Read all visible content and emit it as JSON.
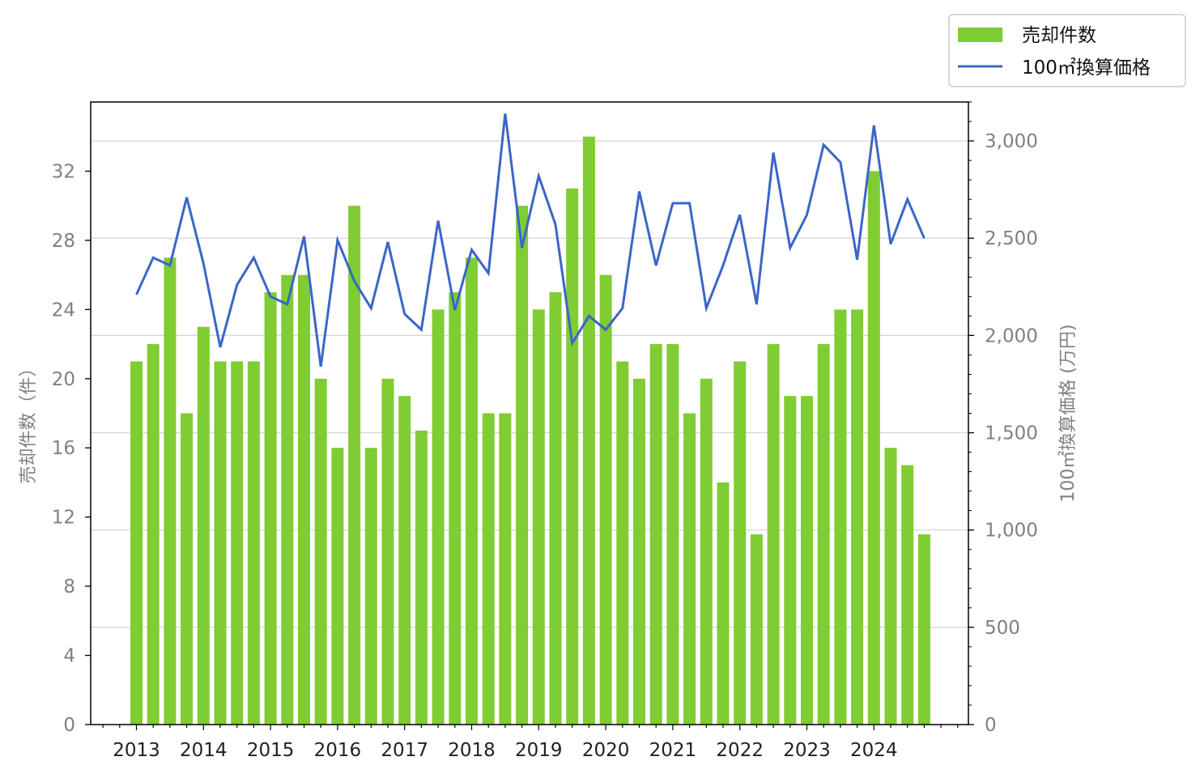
{
  "chart_data": {
    "type": "bar",
    "xtick_labels": [
      "2013",
      "2014",
      "2015",
      "2016",
      "2017",
      "2018",
      "2019",
      "2020",
      "2021",
      "2022",
      "2023",
      "2024"
    ],
    "series": [
      {
        "name": "売却件数",
        "type": "bar",
        "axis": "left",
        "color": "#7fcc33",
        "values": [
          21,
          22,
          27,
          18,
          23,
          21,
          21,
          21,
          25,
          26,
          26,
          20,
          16,
          30,
          16,
          20,
          19,
          17,
          24,
          25,
          27,
          18,
          18,
          30,
          24,
          25,
          31,
          34,
          26,
          21,
          20,
          22,
          22,
          18,
          20,
          14,
          21,
          11,
          22,
          19,
          19,
          22,
          24,
          24,
          32,
          16,
          15,
          11
        ]
      },
      {
        "name": "100㎡換算価格",
        "type": "line",
        "axis": "right",
        "color": "#3a66c8",
        "values": [
          2210,
          2400,
          2360,
          2710,
          2370,
          1940,
          2260,
          2400,
          2200,
          2160,
          2510,
          1840,
          2490,
          2280,
          2140,
          2480,
          2110,
          2030,
          2590,
          2130,
          2440,
          2320,
          3140,
          2450,
          2820,
          2570,
          1960,
          2100,
          2030,
          2140,
          2740,
          2360,
          2680,
          2680,
          2140,
          2360,
          2620,
          2160,
          2940,
          2450,
          2620,
          2980,
          2890,
          2390,
          3080,
          2470,
          2700,
          2500
        ]
      }
    ],
    "ylabel_left": "売却件数（件）",
    "ylabel_right": "100㎡換算価格 (万円)",
    "ylim_left": [
      0,
      36
    ],
    "ylim_right": [
      0,
      3200
    ],
    "yticks_left": [
      "0",
      "4",
      "8",
      "12",
      "16",
      "20",
      "24",
      "28",
      "32"
    ],
    "yticks_right": [
      "0",
      "500",
      "1,000",
      "1,500",
      "2,000",
      "2,500",
      "3,000"
    ],
    "grid": "horizontal (right axis)",
    "legend_placement": "top-right"
  }
}
